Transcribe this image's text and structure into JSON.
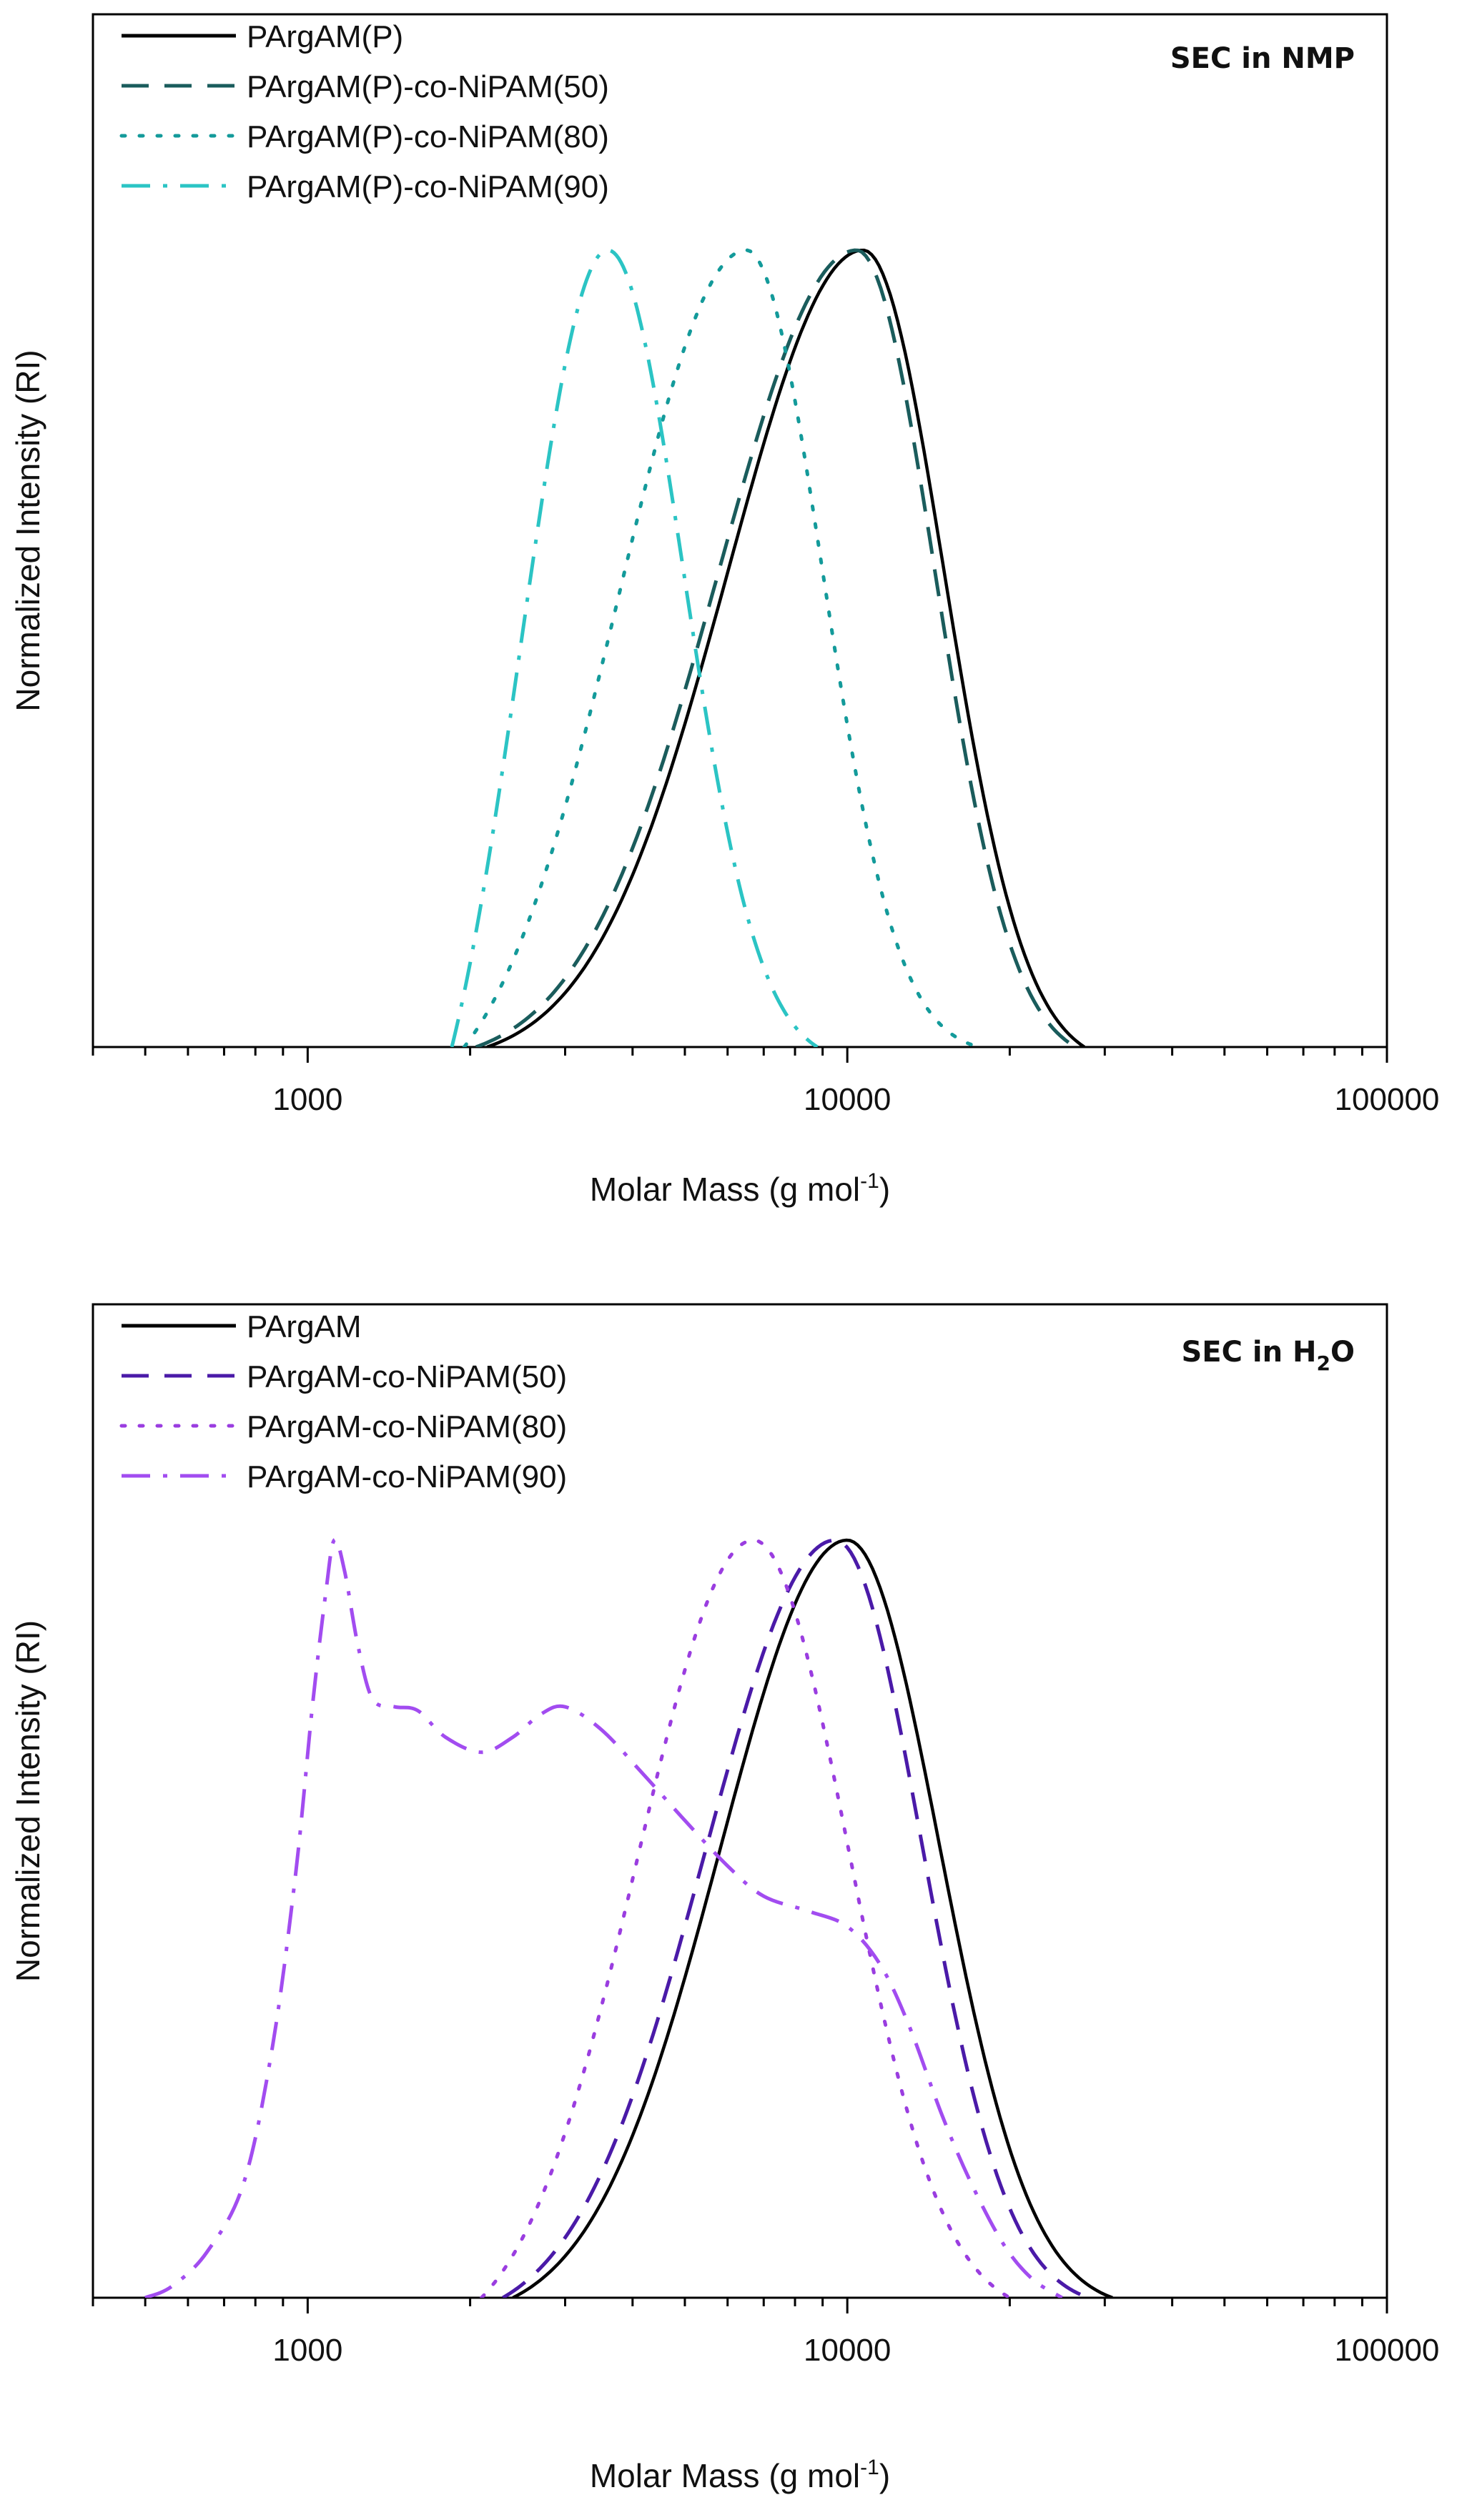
{
  "chart_data": [
    {
      "type": "line",
      "annotation": "SEC in NMP",
      "xlabel": "Molar Mass (g mol",
      "xlabel_sup": "-1",
      "xlabel_end": ")",
      "ylabel": "Normalized Intensity (RI)",
      "x_scale": "log",
      "xlim": [
        400,
        100000
      ],
      "ylim": [
        0,
        1
      ],
      "x_ticks": [
        1000,
        10000,
        100000
      ],
      "x_tick_labels": [
        "1000",
        "10000",
        "100000"
      ],
      "legend_position": "top-left",
      "series": [
        {
          "name": "PArgAM(P)",
          "color": "#000000",
          "style": "solid",
          "peak": 10700,
          "sigma_left": 0.25,
          "sigma_right": 0.15,
          "x_min": 2150,
          "x_max": 27500
        },
        {
          "name": "PArgAM(P)-co-NiPAM(50)",
          "color": "#1a5c5c",
          "style": "dashed",
          "peak": 10400,
          "sigma_left": 0.255,
          "sigma_right": 0.145,
          "x_min": 2050,
          "x_max": 26500
        },
        {
          "name": "PArgAM(P)-co-NiPAM(80)",
          "color": "#139a9a",
          "style": "dotted",
          "peak": 6500,
          "sigma_left": 0.235,
          "sigma_right": 0.14,
          "x_min": 1950,
          "x_max": 17500
        },
        {
          "name": "PArgAM(P)-co-NiPAM(90)",
          "color": "#2bc4c4",
          "style": "dashdot",
          "peak": 3600,
          "sigma_left": 0.16,
          "sigma_right": 0.14,
          "x_min": 1850,
          "x_max": 8800
        }
      ]
    },
    {
      "type": "line",
      "annotation": "SEC in H",
      "annotation_sub": "2",
      "annotation_end": "O",
      "xlabel": "Molar Mass (g mol",
      "xlabel_sup": "-1",
      "xlabel_end": ")",
      "ylabel": "Normalized Intensity (RI)",
      "x_scale": "log",
      "xlim": [
        400,
        100000
      ],
      "ylim": [
        0,
        1
      ],
      "x_ticks": [
        1000,
        10000,
        100000
      ],
      "x_tick_labels": [
        "1000",
        "10000",
        "100000"
      ],
      "legend_position": "top-left",
      "series": [
        {
          "name": "PArgAM",
          "color": "#000000",
          "style": "solid",
          "peak": 10000,
          "sigma_left": 0.235,
          "sigma_right": 0.17,
          "x_min": 2400,
          "x_max": 31000
        },
        {
          "name": "PArgAM-co-NiPAM(50)",
          "color": "#4a1aa8",
          "style": "dashed",
          "peak": 9500,
          "sigma_left": 0.24,
          "sigma_right": 0.16,
          "x_min": 2300,
          "x_max": 28000
        },
        {
          "name": "PArgAM-co-NiPAM(80)",
          "color": "#9a3de0",
          "style": "dotted",
          "peak": 6700,
          "sigma_left": 0.215,
          "sigma_right": 0.175,
          "x_min": 2100,
          "x_max": 20000
        },
        {
          "name": "PArgAM-co-NiPAM(90)",
          "color": "#a24cf0",
          "style": "dashdot",
          "points": [
            [
              500,
              0.0
            ],
            [
              560,
              0.015
            ],
            [
              650,
              0.06
            ],
            [
              760,
              0.15
            ],
            [
              860,
              0.33
            ],
            [
              950,
              0.56
            ],
            [
              1020,
              0.78
            ],
            [
              1080,
              0.93
            ],
            [
              1120,
              1.0
            ],
            [
              1170,
              0.96
            ],
            [
              1240,
              0.86
            ],
            [
              1320,
              0.79
            ],
            [
              1450,
              0.78
            ],
            [
              1600,
              0.775
            ],
            [
              1800,
              0.74
            ],
            [
              2100,
              0.72
            ],
            [
              2400,
              0.74
            ],
            [
              2700,
              0.77
            ],
            [
              3000,
              0.78
            ],
            [
              3500,
              0.75
            ],
            [
              4200,
              0.69
            ],
            [
              5000,
              0.63
            ],
            [
              6000,
              0.57
            ],
            [
              7000,
              0.53
            ],
            [
              8500,
              0.51
            ],
            [
              10000,
              0.49
            ],
            [
              11500,
              0.44
            ],
            [
              13000,
              0.36
            ],
            [
              15000,
              0.24
            ],
            [
              17000,
              0.15
            ],
            [
              19500,
              0.07
            ],
            [
              22000,
              0.025
            ],
            [
              25000,
              0.0
            ]
          ]
        }
      ]
    }
  ]
}
